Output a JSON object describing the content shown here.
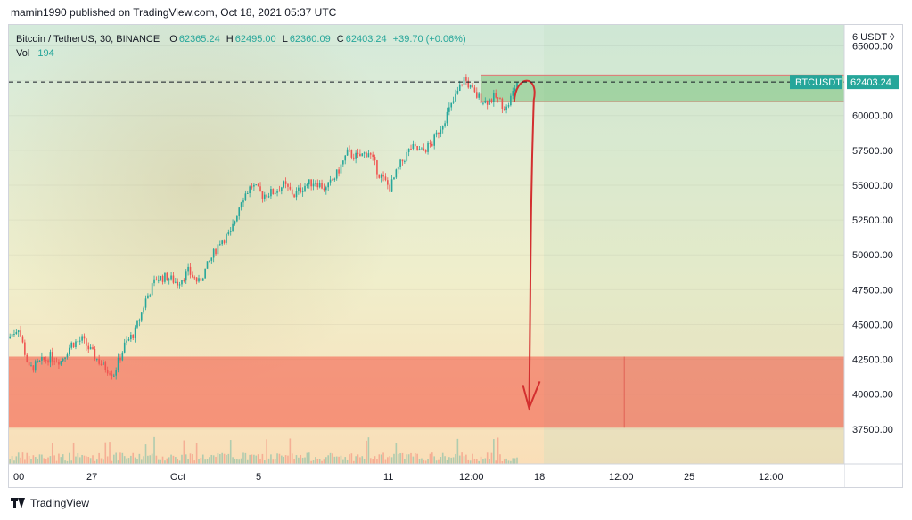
{
  "header": {
    "publisher_text": "mamin1990 published on TradingView.com, Oct 18, 2021 05:37 UTC"
  },
  "legend": {
    "symbol": "Bitcoin / TetherUS, 30, BINANCE",
    "open_label": "O",
    "open": "62365.24",
    "high_label": "H",
    "high": "62495.00",
    "low_label": "L",
    "low": "62360.09",
    "close_label": "C",
    "close": "62403.24",
    "change": "+39.70 (+0.06%)",
    "vol_label": "Vol",
    "vol": "194"
  },
  "price_axis": {
    "currency_label": "6 USDT ◊"
  },
  "price_tags": {
    "symbol_tag": "BTCUSDT",
    "price_tag": "62403.24"
  },
  "footer": {
    "brand": "TradingView"
  },
  "colors": {
    "up": "#26a69a",
    "down": "#ef5350",
    "resistance_zone": "#66bb6a",
    "support_zone": "#f44336",
    "arrow": "#d32f2f",
    "background_top": "#d5ead9",
    "background_bottom": "#fbe1bd"
  },
  "chart_data": {
    "type": "candlestick",
    "title": "Bitcoin / TetherUS, 30, BINANCE",
    "ylim": [
      35000,
      66500
    ],
    "y_ticks": [
      65000,
      62500,
      60000,
      57500,
      55000,
      52500,
      50000,
      47500,
      45000,
      42500,
      40000,
      37500
    ],
    "y_tick_labels": [
      "65000.00",
      "",
      "60000.00",
      "57500.00",
      "55000.00",
      "52500.00",
      "50000.00",
      "47500.00",
      "45000.00",
      "42500.00",
      "40000.00",
      "37500.00"
    ],
    "x_tick_labels": [
      ":00",
      "27",
      "Oct",
      "5",
      "11",
      "12:00",
      "18",
      "12:00",
      "25",
      "12:00"
    ],
    "last_price": 62403.24,
    "price_path": [
      {
        "d": 0,
        "p": 44000
      },
      {
        "d": 1,
        "p": 44800
      },
      {
        "d": 2,
        "p": 41800
      },
      {
        "d": 4,
        "p": 42700
      },
      {
        "d": 5,
        "p": 42400
      },
      {
        "d": 6,
        "p": 43600
      },
      {
        "d": 7,
        "p": 43900
      },
      {
        "d": 8,
        "p": 42900
      },
      {
        "d": 9,
        "p": 42000
      },
      {
        "d": 10,
        "p": 41500
      },
      {
        "d": 11,
        "p": 43500
      },
      {
        "d": 12,
        "p": 44500
      },
      {
        "d": 13,
        "p": 46800
      },
      {
        "d": 14,
        "p": 48300
      },
      {
        "d": 15,
        "p": 48400
      },
      {
        "d": 16,
        "p": 48000
      },
      {
        "d": 17,
        "p": 48800
      },
      {
        "d": 18,
        "p": 48000
      },
      {
        "d": 19,
        "p": 49500
      },
      {
        "d": 20,
        "p": 51000
      },
      {
        "d": 21,
        "p": 51500
      },
      {
        "d": 22,
        "p": 54000
      },
      {
        "d": 23,
        "p": 55000
      },
      {
        "d": 24,
        "p": 54300
      },
      {
        "d": 25,
        "p": 54500
      },
      {
        "d": 26,
        "p": 55000
      },
      {
        "d": 27,
        "p": 54300
      },
      {
        "d": 28,
        "p": 55000
      },
      {
        "d": 29,
        "p": 55300
      },
      {
        "d": 30,
        "p": 54700
      },
      {
        "d": 31,
        "p": 55800
      },
      {
        "d": 32,
        "p": 57300
      },
      {
        "d": 33,
        "p": 57000
      },
      {
        "d": 34,
        "p": 57400
      },
      {
        "d": 35,
        "p": 55800
      },
      {
        "d": 36,
        "p": 54800
      },
      {
        "d": 37,
        "p": 56500
      },
      {
        "d": 38,
        "p": 57700
      },
      {
        "d": 39,
        "p": 57400
      },
      {
        "d": 40,
        "p": 58000
      },
      {
        "d": 41,
        "p": 59500
      },
      {
        "d": 42,
        "p": 61000
      },
      {
        "d": 43,
        "p": 62700
      },
      {
        "d": 44,
        "p": 61500
      },
      {
        "d": 45,
        "p": 61000
      },
      {
        "d": 46,
        "p": 61300
      },
      {
        "d": 47,
        "p": 60500
      },
      {
        "d": 48,
        "p": 62400
      }
    ],
    "resistance_zone": {
      "from": 61000,
      "to": 62900
    },
    "support_zone": {
      "from": 37600,
      "to": 42700
    },
    "projection": {
      "from": 62400,
      "to": 39000
    },
    "annotations": [
      "Resistance zone near 62000",
      "Support zone 37600–42700",
      "Projected drop arrow to ~39000"
    ]
  }
}
